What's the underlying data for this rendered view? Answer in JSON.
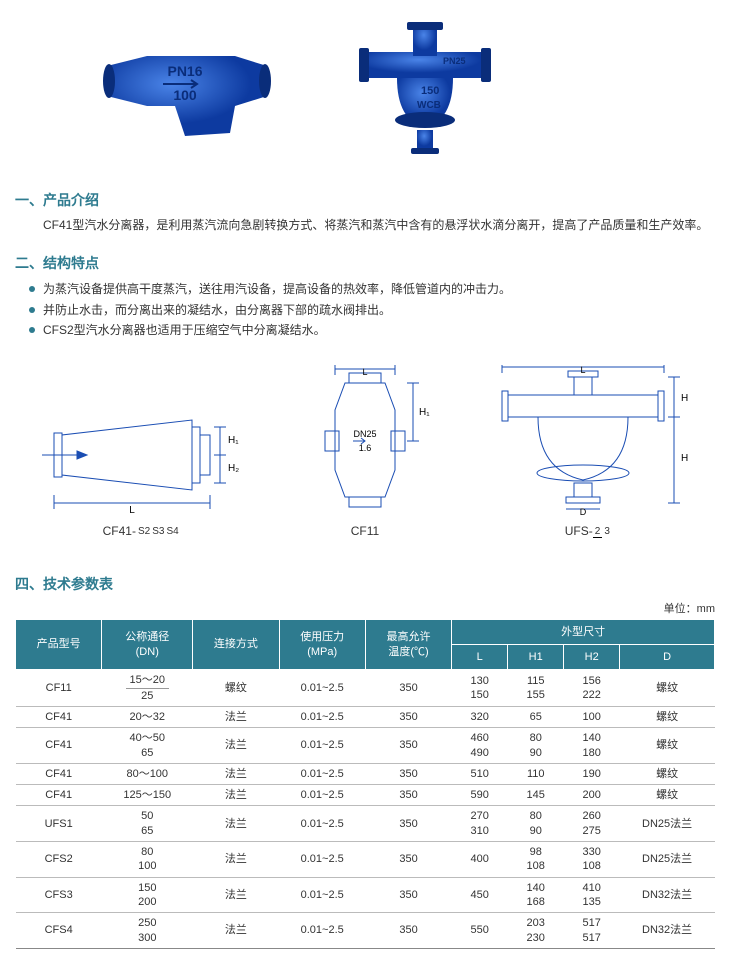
{
  "photos": {
    "cf41": {
      "pn": "PN16",
      "dn": "100",
      "body_color": "#1857c9",
      "text_color": "#0a2d7a"
    },
    "ufs": {
      "pn": "PN25",
      "dn": "150",
      "mat": "WCB",
      "body_color": "#1857c9",
      "text_color": "#0a2d7a"
    }
  },
  "sections": {
    "intro_heading": "一、产品介绍",
    "intro_text": "CF41型汽水分离器，是利用蒸汽流向急剧转换方式、将蒸汽和蒸汽中含有的悬浮状水滴分离开，提高了产品质量和生产效率。",
    "feat_heading": "二、结构特点",
    "features": [
      "为蒸汽设备提供高干度蒸汽，送往用汽设备，提高设备的热效率，降低管道内的冲击力。",
      "并防止水击，而分离出来的凝结水，由分离器下部的疏水阀排出。",
      "CFS2型汽水分离器也适用于压缩空气中分离凝结水。"
    ],
    "params_heading": "四、技术参数表",
    "unit_note": "单位：mm"
  },
  "diagrams": {
    "d1": {
      "label_prefix": "CF41-",
      "s_top": "S2",
      "s_mid": "S3",
      "s_bot": "S4",
      "L": "L",
      "H1": "H₁",
      "H2": "H₂"
    },
    "d2": {
      "label": "CF11",
      "L": "L",
      "H1": "H₁",
      "dn": "DN25",
      "mark": "1.6"
    },
    "d3": {
      "label_prefix": "UFS-",
      "frac_top": "2",
      "frac_bot": "3",
      "L": "L",
      "H1": "H₁",
      "H2": "H₂",
      "D": "D"
    },
    "stroke": "#1a4db3",
    "stroke_width": 1
  },
  "table": {
    "headers": {
      "model": "产品型号",
      "dn": "公称通径\n(DN)",
      "conn": "连接方式",
      "press": "使用压力\n(MPa)",
      "temp": "最高允许\n温度(℃)",
      "dims": "外型尺寸",
      "L": "L",
      "H1": "H1",
      "H2": "H2",
      "D": "D"
    },
    "rows": [
      {
        "model": "CF11",
        "dn_a": "15～20",
        "dn_b": "25",
        "conn": "螺纹",
        "press": "0.01~2.5",
        "temp": "350",
        "L_a": "130",
        "L_b": "150",
        "H1_a": "115",
        "H1_b": "155",
        "H2_a": "156",
        "H2_b": "222",
        "D": "螺纹",
        "split_dn": true
      },
      {
        "model": "CF41",
        "dn": "20～32",
        "conn": "法兰",
        "press": "0.01~2.5",
        "temp": "350",
        "L": "320",
        "H1": "65",
        "H2": "100",
        "D": "螺纹"
      },
      {
        "model": "CF41",
        "dn_a": "40～50",
        "dn_b": "65",
        "conn": "法兰",
        "press": "0.01~2.5",
        "temp": "350",
        "L_a": "460",
        "L_b": "490",
        "H1_a": "80",
        "H1_b": "90",
        "H2_a": "140",
        "H2_b": "180",
        "D": "螺纹"
      },
      {
        "model": "CF41",
        "dn": "80～100",
        "conn": "法兰",
        "press": "0.01~2.5",
        "temp": "350",
        "L": "510",
        "H1": "110",
        "H2": "190",
        "D": "螺纹"
      },
      {
        "model": "CF41",
        "dn": "125～150",
        "conn": "法兰",
        "press": "0.01~2.5",
        "temp": "350",
        "L": "590",
        "H1": "145",
        "H2": "200",
        "D": "螺纹"
      },
      {
        "model": "UFS1",
        "dn_a": "50",
        "dn_b": "65",
        "conn": "法兰",
        "press": "0.01~2.5",
        "temp": "350",
        "L_a": "270",
        "L_b": "310",
        "H1_a": "80",
        "H1_b": "90",
        "H2_a": "260",
        "H2_b": "275",
        "D": "DN25法兰"
      },
      {
        "model": "CFS2",
        "dn_a": "80",
        "dn_b": "100",
        "conn": "法兰",
        "press": "0.01~2.5",
        "temp": "350",
        "L": "400",
        "H1_a": "98",
        "H1_b": "108",
        "H2_a": "330",
        "H2_b": "108",
        "D": "DN25法兰"
      },
      {
        "model": "CFS3",
        "dn_a": "150",
        "dn_b": "200",
        "conn": "法兰",
        "press": "0.01~2.5",
        "temp": "350",
        "L": "450",
        "H1_a": "140",
        "H1_b": "168",
        "H2_a": "410",
        "H2_b": "135",
        "D": "DN32法兰"
      },
      {
        "model": "CFS4",
        "dn_a": "250",
        "dn_b": "300",
        "conn": "法兰",
        "press": "0.01~2.5",
        "temp": "350",
        "L": "550",
        "H1_a": "203",
        "H1_b": "230",
        "H2_a": "517",
        "H2_b": "517",
        "D": "DN32法兰"
      }
    ],
    "header_bg": "#2e7b8f",
    "header_fg": "#ffffff",
    "row_border": "#bbbbbb"
  }
}
